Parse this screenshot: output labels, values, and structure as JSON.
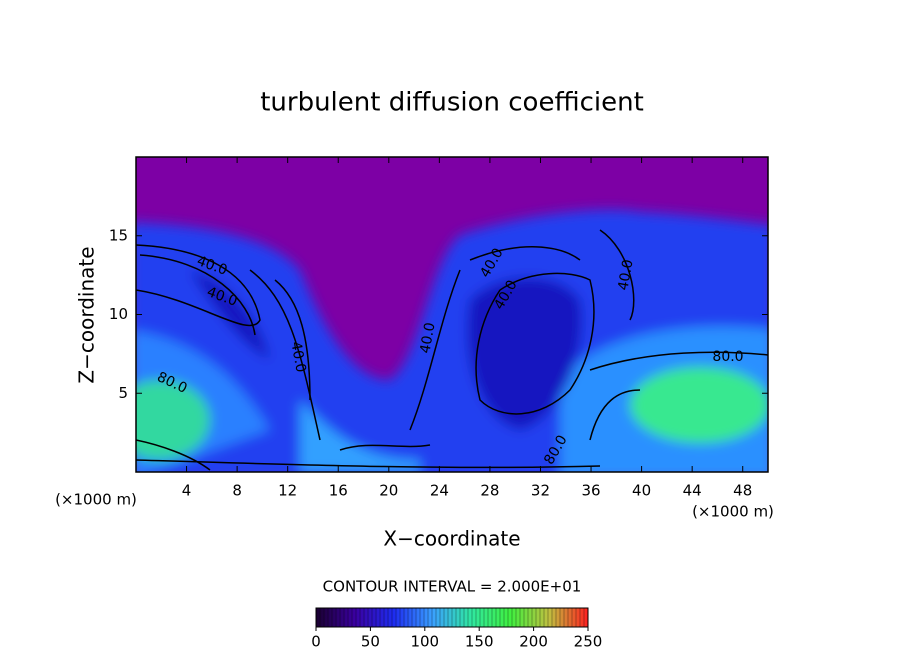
{
  "chart_data": {
    "type": "contour",
    "title": "turbulent diffusion coefficient",
    "x_label": "X−coordinate",
    "y_label": "Z−coordinate",
    "x_unit_label": "(×1000 m)",
    "xlim": [
      0,
      50
    ],
    "xticks": [
      4,
      8,
      12,
      16,
      20,
      24,
      28,
      32,
      36,
      40,
      44,
      48
    ],
    "ylim": [
      0,
      20
    ],
    "yticks": [
      5,
      10,
      15
    ],
    "contour_labels": [
      "40.0",
      "40.0",
      "40.0",
      "40.0",
      "40.0",
      "40.0",
      "40.0",
      "80.0",
      "80.0",
      "80.0"
    ],
    "contour_interval_label": "CONTOUR INTERVAL = 2.000E+01",
    "colorbar_lim": [
      0,
      250
    ],
    "colorbar_ticks": [
      0,
      50,
      100,
      150,
      200,
      250
    ],
    "colormap": [
      "#1a0030",
      "#3a00a0",
      "#1e2cf0",
      "#3aa0ff",
      "#30e8a0",
      "#40f040",
      "#c0c040",
      "#ff2020"
    ]
  }
}
